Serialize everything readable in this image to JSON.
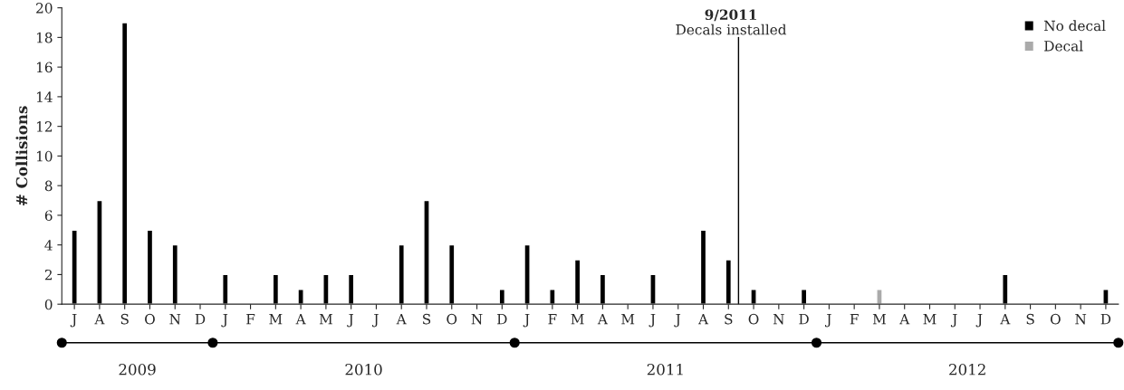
{
  "chart_data": {
    "type": "bar",
    "ylabel": "# Collisions",
    "categories": [
      "J",
      "A",
      "S",
      "O",
      "N",
      "D",
      "J",
      "F",
      "M",
      "A",
      "M",
      "J",
      "J",
      "A",
      "S",
      "O",
      "N",
      "D",
      "J",
      "F",
      "M",
      "A",
      "M",
      "J",
      "J",
      "A",
      "S",
      "O",
      "N",
      "D",
      "J",
      "F",
      "M",
      "A",
      "M",
      "J",
      "J",
      "A",
      "S",
      "O",
      "N",
      "D"
    ],
    "series": [
      {
        "name": "No decal",
        "color": "#000000",
        "values": [
          5,
          7,
          19,
          5,
          4,
          null,
          2,
          null,
          2,
          1,
          2,
          2,
          null,
          4,
          7,
          4,
          null,
          1,
          4,
          1,
          3,
          2,
          null,
          2,
          null,
          5,
          3,
          1,
          null,
          1,
          null,
          null,
          null,
          null,
          null,
          null,
          null,
          2,
          null,
          null,
          null,
          1
        ]
      },
      {
        "name": "Decal",
        "color": "#aaaaaa",
        "values": [
          null,
          null,
          null,
          null,
          null,
          null,
          null,
          null,
          null,
          null,
          null,
          null,
          null,
          null,
          null,
          null,
          null,
          null,
          null,
          null,
          null,
          null,
          null,
          null,
          null,
          null,
          null,
          null,
          null,
          null,
          null,
          null,
          1,
          null,
          null,
          null,
          null,
          null,
          null,
          null,
          null,
          null
        ]
      }
    ],
    "ylim": [
      0,
      20
    ],
    "yticks": [
      0,
      2,
      4,
      6,
      8,
      10,
      12,
      14,
      16,
      18,
      20
    ],
    "grid": false,
    "legend": "top right",
    "annotations": [
      "9/2011\nDecals installed",
      "2009",
      "2010",
      "2011",
      "2012"
    ]
  }
}
